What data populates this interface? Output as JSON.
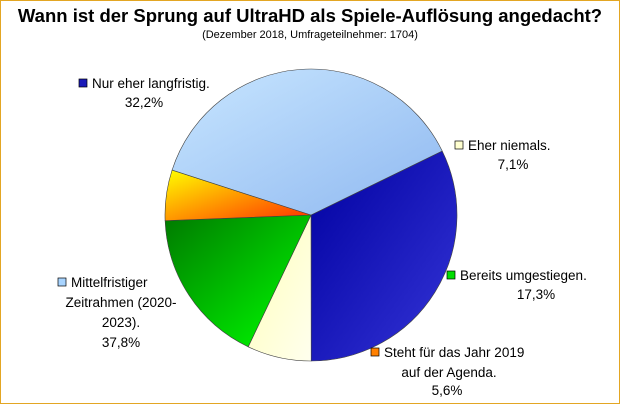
{
  "chart_data": {
    "type": "pie",
    "title": "Wann ist der Sprung auf UltraHD als Spiele-Auflösung angedacht?",
    "subtitle": "(Dezember 2018, Umfrageteilnehmer: 1704)",
    "slices": [
      {
        "label": "Nur eher langfristig.",
        "value": 32.2,
        "value_label": "32,2%",
        "color": "#1a1ab8",
        "gradient": [
          "#0000a0",
          "#3535d8"
        ],
        "label_lines": [
          "Nur eher langfristig."
        ]
      },
      {
        "label": "Eher niemals.",
        "value": 7.1,
        "value_label": "7,1%",
        "color": "#ffffd0",
        "gradient": [
          "#ffffb8",
          "#ffffee"
        ],
        "label_lines": [
          "Eher niemals."
        ]
      },
      {
        "label": "Bereits umgestiegen.",
        "value": 17.3,
        "value_label": "17,3%",
        "color": "#00dd00",
        "gradient": [
          "#007a00",
          "#00ff00"
        ],
        "label_lines": [
          "Bereits umgestiegen."
        ]
      },
      {
        "label": "Steht für das Jahr 2019 auf der Agenda.",
        "value": 5.6,
        "value_label": "5,6%",
        "color": "#ff8000",
        "gradient": [
          "#ffff00",
          "#ff3000"
        ],
        "label_lines": [
          "Steht für das Jahr 2019",
          "auf der Agenda."
        ]
      },
      {
        "label": "Mittelfristiger Zeitrahmen (2020-2023).",
        "value": 37.8,
        "value_label": "37,8%",
        "color": "#a8d4ff",
        "gradient": [
          "#c8e6ff",
          "#8fb8f0"
        ],
        "label_lines": [
          "Mittelfristiger",
          "Zeitrahmen (2020-",
          "2023)."
        ]
      }
    ],
    "legend": "none",
    "start_angle_deg": 64,
    "direction": "clockwise"
  }
}
